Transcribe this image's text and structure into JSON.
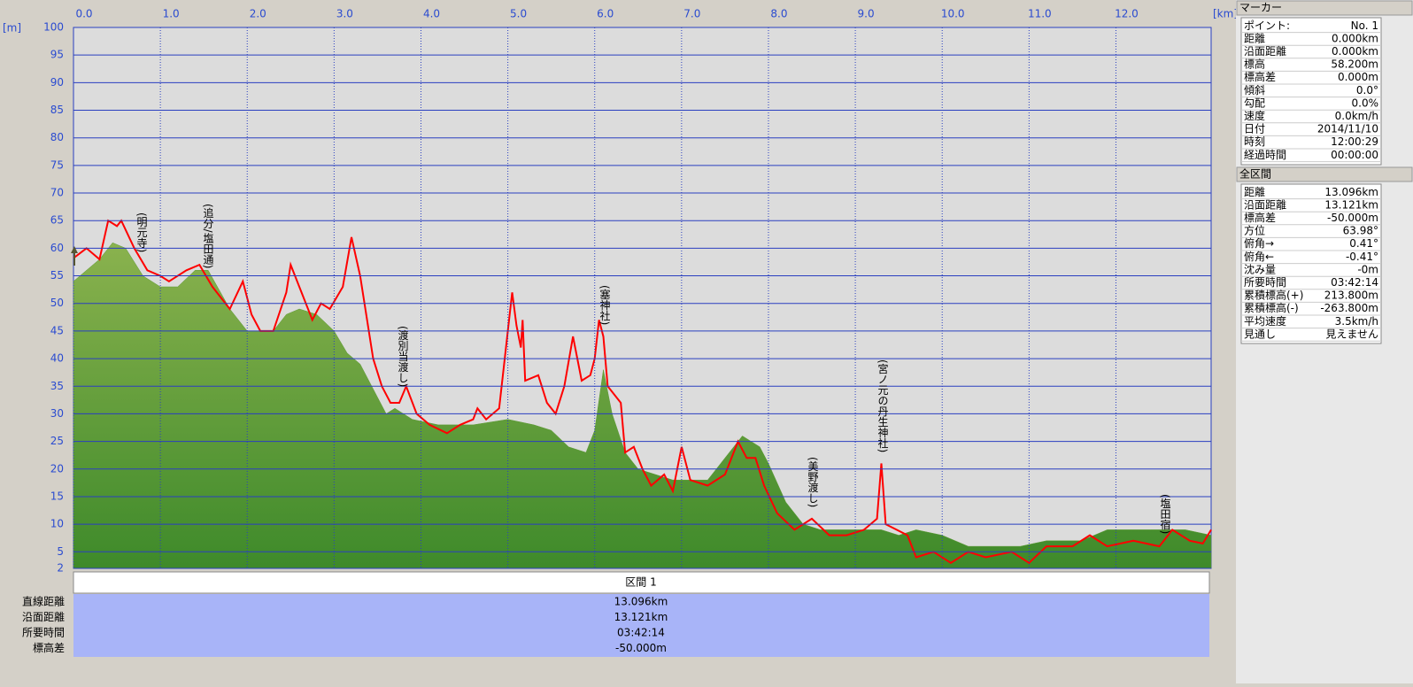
{
  "chart_data": {
    "type": "line",
    "y_label": "[m]",
    "x_label": "[km]",
    "xlim": [
      0,
      13.096
    ],
    "ylim": [
      2,
      100
    ],
    "xticks": [
      {
        "value": 0,
        "label": "0.0"
      },
      {
        "value": 1,
        "label": "1.0"
      },
      {
        "value": 2,
        "label": "2.0"
      },
      {
        "value": 3,
        "label": "3.0"
      },
      {
        "value": 4,
        "label": "4.0"
      },
      {
        "value": 5,
        "label": "5.0"
      },
      {
        "value": 6,
        "label": "6.0"
      },
      {
        "value": 7,
        "label": "7.0"
      },
      {
        "value": 8,
        "label": "8.0"
      },
      {
        "value": 9,
        "label": "9.0"
      },
      {
        "value": 10,
        "label": "10.0"
      },
      {
        "value": 11,
        "label": "11.0"
      },
      {
        "value": 12,
        "label": "12.0"
      }
    ],
    "yticks": [
      2,
      5,
      10,
      15,
      20,
      25,
      30,
      35,
      40,
      45,
      50,
      55,
      60,
      65,
      70,
      75,
      80,
      85,
      90,
      95,
      100
    ],
    "grid": true,
    "series": [
      {
        "style": "area",
        "color": "#5e9a36",
        "x": [
          0,
          0.3,
          0.45,
          0.6,
          0.8,
          1.0,
          1.2,
          1.4,
          1.55,
          1.8,
          2.0,
          2.3,
          2.45,
          2.6,
          2.8,
          3.0,
          3.15,
          3.3,
          3.5,
          3.6,
          3.7,
          3.9,
          4.2,
          4.4,
          4.6,
          5.0,
          5.3,
          5.5,
          5.7,
          5.9,
          6.0,
          6.1,
          6.2,
          6.35,
          6.5,
          6.9,
          7.3,
          7.6,
          7.7,
          7.9,
          8.0,
          8.2,
          8.4,
          8.6,
          9.0,
          9.3,
          9.5,
          9.7,
          10.0,
          10.3,
          10.6,
          10.9,
          11.2,
          11.6,
          11.9,
          12.4,
          12.8,
          13.096
        ],
        "values": [
          54,
          58,
          61,
          60,
          55,
          53,
          53,
          56,
          56,
          49,
          45,
          45,
          48,
          49,
          48,
          45,
          41,
          39,
          33,
          30,
          31,
          29,
          28,
          28,
          28,
          29,
          28,
          27,
          24,
          23,
          27,
          38,
          30,
          23,
          20,
          18,
          18,
          24,
          26,
          24,
          21,
          14,
          10,
          9,
          9,
          9,
          8,
          9,
          8,
          6,
          6,
          6,
          7,
          7,
          9,
          9,
          9,
          8
        ]
      },
      {
        "style": "line",
        "color": "#ff0000",
        "x": [
          0,
          0.15,
          0.3,
          0.4,
          0.5,
          0.55,
          0.7,
          0.85,
          1.0,
          1.1,
          1.3,
          1.45,
          1.6,
          1.8,
          1.95,
          2.05,
          2.15,
          2.3,
          2.45,
          2.5,
          2.6,
          2.75,
          2.85,
          2.95,
          3.1,
          3.2,
          3.3,
          3.45,
          3.55,
          3.65,
          3.75,
          3.83,
          3.95,
          4.1,
          4.3,
          4.45,
          4.6,
          4.65,
          4.75,
          4.9,
          5.0,
          5.05,
          5.1,
          5.15,
          5.17,
          5.2,
          5.35,
          5.45,
          5.55,
          5.65,
          5.75,
          5.85,
          5.95,
          6.0,
          6.05,
          6.1,
          6.15,
          6.3,
          6.35,
          6.45,
          6.55,
          6.65,
          6.8,
          6.9,
          7.0,
          7.1,
          7.3,
          7.5,
          7.65,
          7.75,
          7.85,
          7.95,
          8.1,
          8.3,
          8.5,
          8.7,
          8.9,
          9.1,
          9.25,
          9.3,
          9.35,
          9.6,
          9.7,
          9.9,
          10.1,
          10.3,
          10.5,
          10.8,
          11.0,
          11.2,
          11.5,
          11.7,
          11.9,
          12.2,
          12.5,
          12.65,
          12.85,
          13.0,
          13.096
        ],
        "values": [
          58.2,
          60,
          58,
          65,
          64,
          65,
          60,
          56,
          55,
          54,
          56,
          57,
          53,
          49,
          54,
          48,
          45,
          45,
          52,
          57,
          53,
          47,
          50,
          49,
          53,
          62,
          55,
          40,
          35,
          32,
          32,
          35,
          30,
          28,
          26.5,
          28,
          29,
          31,
          29,
          31,
          45,
          52,
          46,
          42,
          47,
          36,
          37,
          32,
          30,
          35,
          44,
          36,
          37,
          40,
          47,
          44,
          35,
          32,
          23,
          24,
          20,
          17,
          19,
          16,
          24,
          18,
          17,
          19,
          25,
          22,
          22,
          17,
          12,
          9,
          11,
          8,
          8,
          9,
          11,
          21,
          10,
          8,
          4,
          5,
          3,
          5,
          4,
          5,
          3,
          6,
          6,
          8,
          6,
          7,
          6,
          9,
          7,
          6.5,
          9
        ]
      }
    ],
    "annotations": [
      "(明元寺)",
      "(追分/塩田通)",
      "(渡別当渡し)",
      "(塞神社)",
      "(宮ノ元の丹生神社)",
      "(美野渡し)",
      "(塩田宿)"
    ]
  },
  "summary": {
    "header": "区間 1",
    "rows": [
      [
        "直線距離",
        "13.096km"
      ],
      [
        "沿面距離",
        "13.121km"
      ],
      [
        "所要時間",
        "03:42:14"
      ],
      [
        "標高差",
        "-50.000m"
      ]
    ]
  },
  "marker_panel": {
    "title": "マーカー",
    "rows": [
      [
        "ポイント:",
        "No. 1"
      ],
      [
        "距離",
        "0.000km"
      ],
      [
        "沿面距離",
        "0.000km"
      ],
      [
        "標高",
        "58.200m"
      ],
      [
        "標高差",
        "0.000m"
      ],
      [
        "傾斜",
        "0.0°"
      ],
      [
        "勾配",
        "0.0%"
      ],
      [
        "速度",
        "0.0km/h"
      ],
      [
        "日付",
        "2014/11/10"
      ],
      [
        "時刻",
        "12:00:29"
      ],
      [
        "経過時間",
        "00:00:00"
      ]
    ]
  },
  "total_panel": {
    "title": "全区間",
    "rows": [
      [
        "距離",
        "13.096km"
      ],
      [
        "沿面距離",
        "13.121km"
      ],
      [
        "標高差",
        "-50.000m"
      ],
      [
        "方位",
        "63.98°"
      ],
      [
        "俯角→",
        "0.41°"
      ],
      [
        "俯角←",
        "-0.41°"
      ],
      [
        "沈み量",
        "-0m"
      ],
      [
        "所要時間",
        "03:42:14"
      ],
      [
        "累積標高(+)",
        "213.800m"
      ],
      [
        "累積標高(-)",
        "-263.800m"
      ],
      [
        "平均速度",
        "3.5km/h"
      ],
      [
        "見通し",
        "見えません"
      ]
    ]
  }
}
